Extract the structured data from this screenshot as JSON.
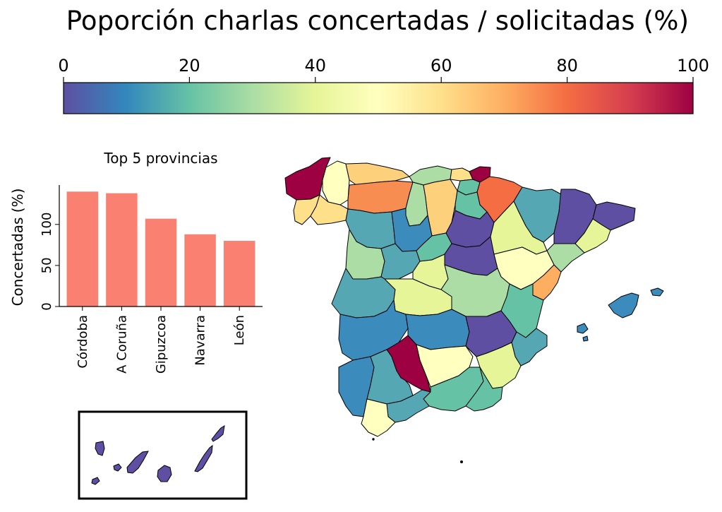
{
  "title": "Poporción charlas concertadas / solicitadas (%)",
  "colorbar": {
    "ticks": [
      "0",
      "20",
      "40",
      "60",
      "80",
      "100"
    ],
    "range": [
      0,
      100
    ],
    "colormap": "Spectral_r",
    "stops": [
      "#5e4fa2",
      "#3288bd",
      "#66c2a5",
      "#abdda4",
      "#e6f598",
      "#ffffbf",
      "#fee08b",
      "#fdae61",
      "#f46d43",
      "#d53e4f",
      "#9e0142"
    ]
  },
  "chart_data": {
    "type": "bar",
    "title": "Top 5 provincias",
    "xlabel": "",
    "ylabel": "Concertadas (%)",
    "categories": [
      "Córdoba",
      "A Coruña",
      "Gipuzcoa",
      "Navarra",
      "León"
    ],
    "values": [
      140,
      138,
      107,
      88,
      80
    ],
    "ylim": [
      0,
      148
    ],
    "yticks": [
      "0",
      "50",
      "100"
    ],
    "bar_color": "#fa8072",
    "grid": false
  },
  "map": {
    "outline_color": "#000000",
    "inset_label": ""
  }
}
